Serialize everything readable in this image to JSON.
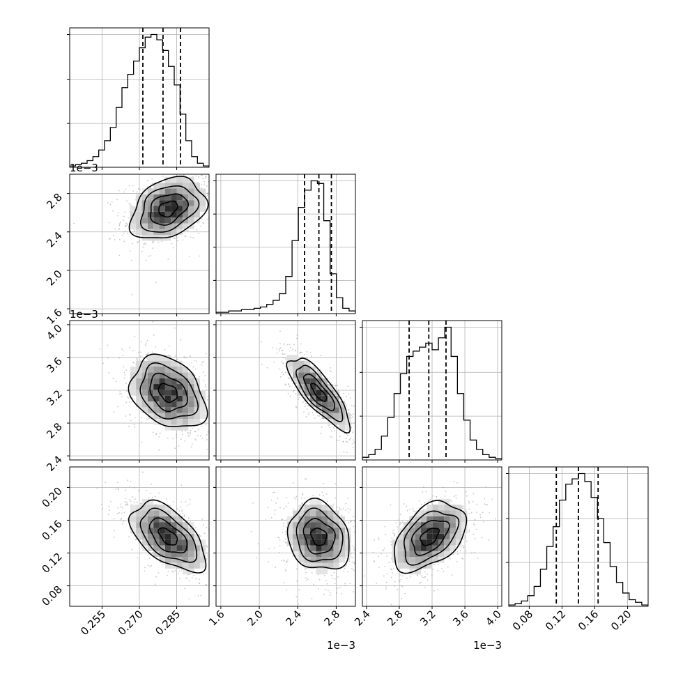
{
  "chart_data": {
    "type": "corner",
    "params": [
      {
        "index": 0,
        "range": [
          0.242,
          0.298
        ],
        "ticks": [
          0.255,
          0.27,
          0.285
        ],
        "tick_labels": [
          "0.255",
          "0.270",
          "0.285"
        ],
        "offset": "",
        "quantiles": [
          0.2714,
          0.2795,
          0.2865
        ],
        "hist_max": 1.0,
        "hist_ticks": [
          0.33,
          0.66,
          1.0
        ],
        "hist": {
          "edges_from": 0.242,
          "edges_to": 0.298,
          "counts": [
            0.01,
            0.02,
            0.03,
            0.05,
            0.08,
            0.13,
            0.2,
            0.3,
            0.45,
            0.6,
            0.7,
            0.8,
            0.9,
            0.98,
            1.0,
            0.96,
            0.88,
            0.76,
            0.62,
            0.4,
            0.2,
            0.08,
            0.03,
            0.01
          ]
        }
      },
      {
        "index": 1,
        "range": [
          1.55,
          3.0
        ],
        "ticks": [
          1.6,
          2.0,
          2.4,
          2.8
        ],
        "tick_labels": [
          "1.6",
          "2.0",
          "2.4",
          "2.8"
        ],
        "offset": "1e−3",
        "quantiles": [
          2.47,
          2.62,
          2.75
        ],
        "hist_max": 1.0,
        "hist_ticks": [
          0.25,
          0.5,
          0.75,
          1.0
        ],
        "hist": {
          "edges_from": 1.55,
          "edges_to": 3.0,
          "counts": [
            0.01,
            0.01,
            0.02,
            0.02,
            0.03,
            0.03,
            0.04,
            0.05,
            0.07,
            0.1,
            0.15,
            0.28,
            0.55,
            0.8,
            0.93,
            1.0,
            0.98,
            0.7,
            0.3,
            0.12,
            0.04,
            0.02
          ]
        }
      },
      {
        "index": 2,
        "range": [
          2.35,
          4.05
        ],
        "ticks": [
          2.4,
          2.8,
          3.2,
          3.6,
          4.0
        ],
        "tick_labels": [
          "2.4",
          "2.8",
          "3.2",
          "3.6",
          "4.0"
        ],
        "offset": "1e−3",
        "quantiles": [
          2.92,
          3.16,
          3.37
        ],
        "hist_max": 1.0,
        "hist_ticks": [
          0.33,
          0.66,
          1.0
        ],
        "hist": {
          "edges_from": 2.35,
          "edges_to": 4.05,
          "counts": [
            0.02,
            0.04,
            0.08,
            0.18,
            0.32,
            0.5,
            0.65,
            0.78,
            0.82,
            0.85,
            0.88,
            0.83,
            0.92,
            1.0,
            0.78,
            0.5,
            0.3,
            0.15,
            0.08,
            0.04,
            0.02,
            0.01
          ]
        }
      },
      {
        "index": 3,
        "range": [
          0.055,
          0.225
        ],
        "ticks": [
          0.08,
          0.12,
          0.16,
          0.2
        ],
        "tick_labels": [
          "0.08",
          "0.12",
          "0.16",
          "0.20"
        ],
        "offset": "",
        "quantiles": [
          0.113,
          0.14,
          0.164
        ],
        "hist_max": 1.0,
        "hist_ticks": [
          0.33,
          0.66,
          1.0
        ],
        "hist": {
          "edges_from": 0.055,
          "edges_to": 0.225,
          "counts": [
            0.01,
            0.02,
            0.04,
            0.08,
            0.15,
            0.28,
            0.45,
            0.6,
            0.8,
            0.92,
            0.96,
            1.0,
            0.94,
            0.82,
            0.66,
            0.48,
            0.3,
            0.18,
            0.1,
            0.05,
            0.03,
            0.01
          ]
        }
      }
    ],
    "pairs": [
      {
        "row": 1,
        "col": 0,
        "mean": [
          0.2815,
          2.64
        ],
        "sd": [
          0.0075,
          0.16
        ],
        "rho": 0.3
      },
      {
        "row": 2,
        "col": 0,
        "mean": [
          0.2815,
          3.17
        ],
        "sd": [
          0.0075,
          0.22
        ],
        "rho": -0.3
      },
      {
        "row": 2,
        "col": 1,
        "mean": [
          2.62,
          3.17
        ],
        "sd": [
          0.16,
          0.22
        ],
        "rho": -0.8
      },
      {
        "row": 3,
        "col": 0,
        "mean": [
          0.2815,
          0.14
        ],
        "sd": [
          0.0075,
          0.021
        ],
        "rho": -0.55
      },
      {
        "row": 3,
        "col": 1,
        "mean": [
          2.62,
          0.14
        ],
        "sd": [
          0.16,
          0.021
        ],
        "rho": -0.15
      },
      {
        "row": 3,
        "col": 2,
        "mean": [
          3.17,
          0.14
        ],
        "sd": [
          0.22,
          0.021
        ],
        "rho": 0.45
      }
    ],
    "contour_levels_sigma": [
      0.5,
      1.0,
      1.5,
      2.0
    ],
    "grid": true,
    "title": "",
    "xlabel": "",
    "ylabel": ""
  }
}
